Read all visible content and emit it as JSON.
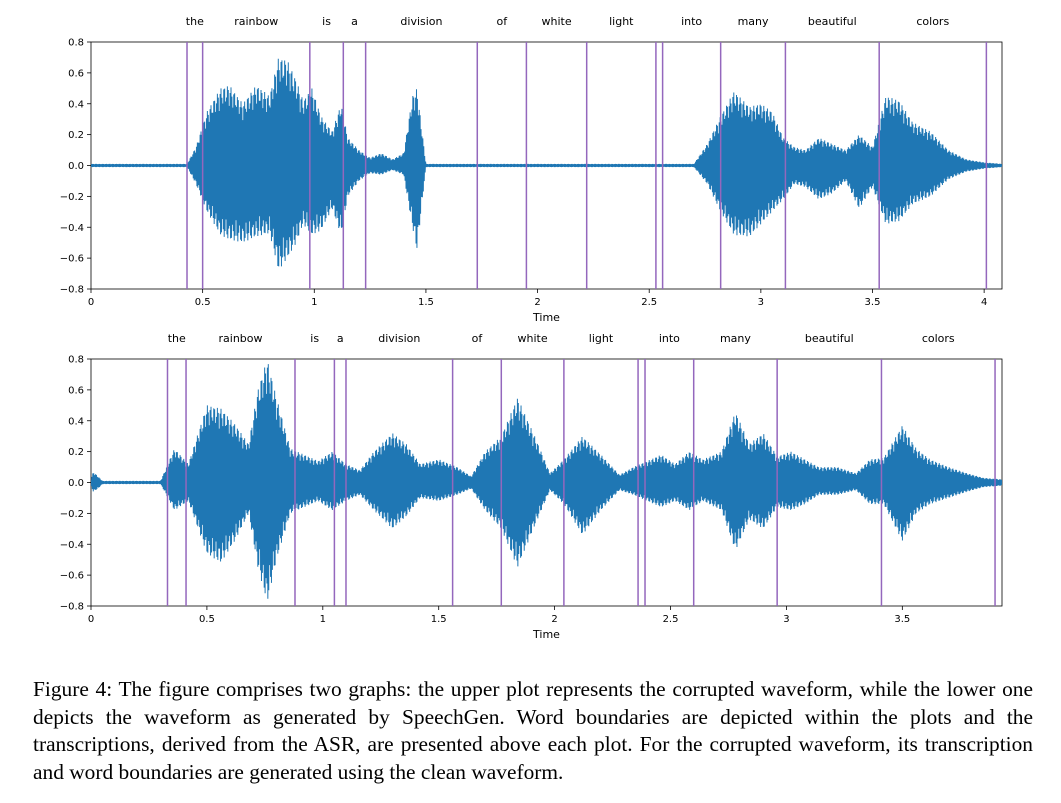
{
  "chart_data": [
    {
      "type": "line",
      "name": "corrupted-waveform",
      "xlabel": "Time",
      "ylabel": "",
      "xlim": [
        0,
        4.08
      ],
      "ylim": [
        -0.8,
        0.8
      ],
      "xticks": [
        0,
        0.5,
        1,
        1.5,
        2,
        2.5,
        3,
        3.5,
        4
      ],
      "xtick_labels": [
        "0",
        "0.5",
        "1",
        "1.5",
        "2",
        "2.5",
        "3",
        "3.5",
        "4"
      ],
      "yticks": [
        0.8,
        0.6,
        0.4,
        0.2,
        0.0,
        -0.2,
        -0.4,
        -0.6,
        -0.8
      ],
      "ytick_labels": [
        "0.8",
        "0.6",
        "0.4",
        "0.2",
        "0.0",
        "−0.2",
        "−0.4",
        "−0.6",
        "−0.8"
      ],
      "words": [
        {
          "text": "the",
          "start": 0.43,
          "end": 0.5
        },
        {
          "text": "rainbow",
          "start": 0.5,
          "end": 0.98
        },
        {
          "text": "is",
          "start": 0.98,
          "end": 1.13
        },
        {
          "text": "a",
          "start": 1.13,
          "end": 1.23
        },
        {
          "text": "division",
          "start": 1.23,
          "end": 1.73
        },
        {
          "text": "of",
          "start": 1.73,
          "end": 1.95
        },
        {
          "text": "white",
          "start": 1.95,
          "end": 2.22
        },
        {
          "text": "light",
          "start": 2.22,
          "end": 2.53
        },
        {
          "text": "into",
          "start": 2.56,
          "end": 2.82
        },
        {
          "text": "many",
          "start": 2.82,
          "end": 3.11
        },
        {
          "text": "beautiful",
          "start": 3.11,
          "end": 3.53
        },
        {
          "text": "colors",
          "start": 3.53,
          "end": 4.01
        }
      ],
      "boundaries": [
        0.43,
        0.5,
        0.98,
        1.13,
        1.23,
        1.73,
        1.95,
        2.22,
        2.53,
        2.56,
        2.82,
        3.11,
        3.53,
        4.01
      ],
      "envelope": {
        "t": [
          0.0,
          0.43,
          0.47,
          0.52,
          0.58,
          0.62,
          0.68,
          0.74,
          0.8,
          0.84,
          0.88,
          0.92,
          0.95,
          0.99,
          1.03,
          1.08,
          1.12,
          1.15,
          1.2,
          1.25,
          1.3,
          1.35,
          1.4,
          1.44,
          1.46,
          1.5,
          2.7,
          2.76,
          2.82,
          2.88,
          2.95,
          3.0,
          3.05,
          3.1,
          3.15,
          3.2,
          3.26,
          3.32,
          3.38,
          3.44,
          3.5,
          3.56,
          3.62,
          3.68,
          3.76,
          3.84,
          3.92,
          4.0,
          4.08
        ],
        "pos": [
          0.01,
          0.01,
          0.12,
          0.35,
          0.5,
          0.52,
          0.4,
          0.52,
          0.45,
          0.7,
          0.68,
          0.55,
          0.42,
          0.5,
          0.32,
          0.22,
          0.4,
          0.18,
          0.1,
          0.05,
          0.08,
          0.04,
          0.08,
          0.45,
          0.5,
          0.01,
          0.01,
          0.14,
          0.32,
          0.48,
          0.38,
          0.4,
          0.35,
          0.18,
          0.12,
          0.1,
          0.18,
          0.14,
          0.1,
          0.2,
          0.12,
          0.45,
          0.42,
          0.28,
          0.22,
          0.1,
          0.04,
          0.02,
          0.01
        ],
        "neg": [
          -0.01,
          -0.01,
          -0.12,
          -0.3,
          -0.45,
          -0.48,
          -0.5,
          -0.46,
          -0.44,
          -0.68,
          -0.6,
          -0.5,
          -0.38,
          -0.45,
          -0.42,
          -0.28,
          -0.45,
          -0.2,
          -0.1,
          -0.05,
          -0.06,
          -0.03,
          -0.06,
          -0.4,
          -0.55,
          -0.01,
          -0.01,
          -0.12,
          -0.3,
          -0.45,
          -0.46,
          -0.38,
          -0.3,
          -0.22,
          -0.12,
          -0.14,
          -0.22,
          -0.18,
          -0.1,
          -0.28,
          -0.14,
          -0.38,
          -0.36,
          -0.25,
          -0.2,
          -0.09,
          -0.04,
          -0.02,
          -0.01
        ]
      }
    },
    {
      "type": "line",
      "name": "speechgen-waveform",
      "xlabel": "Time",
      "ylabel": "",
      "xlim": [
        0,
        3.93
      ],
      "ylim": [
        -0.8,
        0.8
      ],
      "xticks": [
        0,
        0.5,
        1,
        1.5,
        2,
        2.5,
        3,
        3.5
      ],
      "xtick_labels": [
        "0",
        "0.5",
        "1",
        "1.5",
        "2",
        "2.5",
        "3",
        "3.5"
      ],
      "yticks": [
        0.8,
        0.6,
        0.4,
        0.2,
        0.0,
        -0.2,
        -0.4,
        -0.6,
        -0.8
      ],
      "ytick_labels": [
        "0.8",
        "0.6",
        "0.4",
        "0.2",
        "0.0",
        "−0.2",
        "−0.4",
        "−0.6",
        "−0.8"
      ],
      "words": [
        {
          "text": "the",
          "start": 0.33,
          "end": 0.41
        },
        {
          "text": "rainbow",
          "start": 0.41,
          "end": 0.88
        },
        {
          "text": "is",
          "start": 0.88,
          "end": 1.05
        },
        {
          "text": "a",
          "start": 1.05,
          "end": 1.1
        },
        {
          "text": "division",
          "start": 1.1,
          "end": 1.56
        },
        {
          "text": "of",
          "start": 1.56,
          "end": 1.77
        },
        {
          "text": "white",
          "start": 1.77,
          "end": 2.04
        },
        {
          "text": "light",
          "start": 2.04,
          "end": 2.36
        },
        {
          "text": "into",
          "start": 2.39,
          "end": 2.6
        },
        {
          "text": "many",
          "start": 2.6,
          "end": 2.96
        },
        {
          "text": "beautiful",
          "start": 2.96,
          "end": 3.41
        },
        {
          "text": "colors",
          "start": 3.41,
          "end": 3.9
        }
      ],
      "boundaries": [
        0.33,
        0.41,
        0.88,
        1.05,
        1.1,
        1.56,
        1.77,
        2.04,
        2.36,
        2.39,
        2.6,
        2.96,
        3.41,
        3.9
      ],
      "envelope": {
        "t": [
          0.0,
          0.01,
          0.03,
          0.05,
          0.3,
          0.36,
          0.42,
          0.5,
          0.56,
          0.62,
          0.68,
          0.72,
          0.76,
          0.8,
          0.86,
          0.92,
          0.98,
          1.04,
          1.1,
          1.16,
          1.22,
          1.3,
          1.36,
          1.42,
          1.5,
          1.58,
          1.64,
          1.7,
          1.77,
          1.84,
          1.92,
          1.98,
          2.04,
          2.12,
          2.2,
          2.28,
          2.34,
          2.4,
          2.46,
          2.52,
          2.58,
          2.64,
          2.72,
          2.78,
          2.84,
          2.9,
          2.96,
          3.02,
          3.08,
          3.14,
          3.22,
          3.3,
          3.36,
          3.42,
          3.5,
          3.56,
          3.62,
          3.7,
          3.78,
          3.85,
          3.93
        ],
        "pos": [
          0.02,
          0.07,
          0.04,
          0.01,
          0.01,
          0.22,
          0.12,
          0.5,
          0.48,
          0.38,
          0.25,
          0.6,
          0.8,
          0.55,
          0.22,
          0.18,
          0.14,
          0.2,
          0.12,
          0.08,
          0.2,
          0.32,
          0.25,
          0.12,
          0.15,
          0.1,
          0.04,
          0.2,
          0.3,
          0.55,
          0.28,
          0.06,
          0.15,
          0.3,
          0.18,
          0.05,
          0.1,
          0.14,
          0.18,
          0.12,
          0.2,
          0.15,
          0.2,
          0.46,
          0.25,
          0.32,
          0.17,
          0.2,
          0.15,
          0.1,
          0.1,
          0.06,
          0.15,
          0.16,
          0.37,
          0.22,
          0.15,
          0.1,
          0.06,
          0.03,
          0.02
        ],
        "neg": [
          -0.02,
          -0.06,
          -0.04,
          -0.01,
          -0.01,
          -0.18,
          -0.12,
          -0.46,
          -0.52,
          -0.38,
          -0.2,
          -0.55,
          -0.78,
          -0.5,
          -0.2,
          -0.16,
          -0.12,
          -0.18,
          -0.12,
          -0.08,
          -0.18,
          -0.3,
          -0.22,
          -0.1,
          -0.12,
          -0.08,
          -0.04,
          -0.18,
          -0.3,
          -0.55,
          -0.26,
          -0.05,
          -0.14,
          -0.34,
          -0.18,
          -0.05,
          -0.08,
          -0.12,
          -0.16,
          -0.12,
          -0.18,
          -0.12,
          -0.18,
          -0.44,
          -0.24,
          -0.3,
          -0.16,
          -0.18,
          -0.14,
          -0.08,
          -0.08,
          -0.05,
          -0.14,
          -0.14,
          -0.38,
          -0.2,
          -0.14,
          -0.1,
          -0.06,
          -0.03,
          -0.02
        ]
      }
    }
  ],
  "colors": {
    "wave": "#1f77b4",
    "boundary": "#9467bd",
    "axis": "#000000"
  },
  "caption": "Figure 4: The figure comprises two graphs: the upper plot represents the corrupted waveform, while the lower one depicts the waveform as generated by SpeechGen. Word boundaries are depicted within the plots and the transcriptions, derived from the ASR, are presented above each plot. For the corrupted waveform, its transcription and word boundaries are generated using the clean waveform."
}
